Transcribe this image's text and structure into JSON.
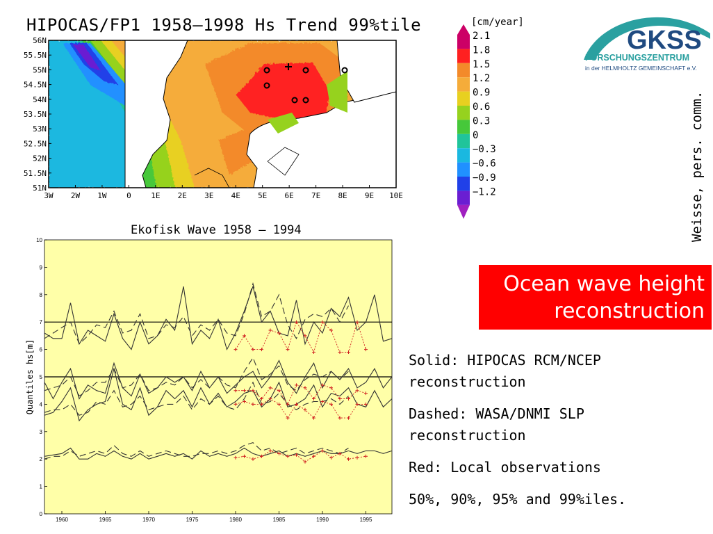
{
  "map": {
    "title": "HIPOCAS/FP1 1958–1998 Hs Trend 99%tile",
    "lat_labels": [
      "56N",
      "55.5N",
      "55N",
      "54.5N",
      "54N",
      "53.5N",
      "53N",
      "52.5N",
      "52N",
      "51.5N",
      "51N"
    ],
    "lon_labels": [
      "3W",
      "2W",
      "1W",
      "0",
      "1E",
      "2E",
      "3E",
      "4E",
      "5E",
      "6E",
      "7E",
      "8E",
      "9E",
      "10E"
    ]
  },
  "legend": {
    "unit": "[cm/year]",
    "entries": [
      {
        "label": "2.1",
        "color": "#cc0066"
      },
      {
        "label": "1.8",
        "color": "#ff2020"
      },
      {
        "label": "1.5",
        "color": "#f38a2a"
      },
      {
        "label": "1.2",
        "color": "#f5ac3a"
      },
      {
        "label": "0.9",
        "color": "#e8d020"
      },
      {
        "label": "0.6",
        "color": "#96d21e"
      },
      {
        "label": "0.3",
        "color": "#46c83a"
      },
      {
        "label": "0",
        "color": "#20c49a"
      },
      {
        "label": "−0.3",
        "color": "#1ab8e0"
      },
      {
        "label": "−0.6",
        "color": "#2090ff"
      },
      {
        "label": "−0.9",
        "color": "#2040e8"
      },
      {
        "label": "−1.2",
        "color": "#6a1ed2"
      }
    ],
    "bottom_color": "#a020c0"
  },
  "logo": {
    "letters": "GKSS",
    "line1": "FORSCHUNGSZENTRUM",
    "line2": "in der HELMHOLTZ GEMEINSCHAFT e.V.",
    "navy": "#1f4a80",
    "teal": "#2aa0a0"
  },
  "credit": "Weisse, pers. comm.",
  "heading": {
    "line1": "Ocean wave height",
    "line2": "reconstruction"
  },
  "notes": [
    {
      "a": "Solid: HIPOCAS RCM/NCEP",
      "b": "reconstruction"
    },
    {
      "a": "Dashed: WASA/DNMI SLP",
      "b": "reconstruction"
    },
    {
      "a": "Red: Local observations",
      "b": ""
    },
    {
      "a": "50%, 90%, 95% and 99%iles.",
      "b": ""
    }
  ],
  "chart_data": {
    "type": "line",
    "title": "Ekofisk Wave 1958 – 1994",
    "xlabel": "",
    "ylabel": "Quantiles hs[m]",
    "xlim": [
      1958,
      1998
    ],
    "ylim": [
      0,
      10
    ],
    "x_ticks": [
      1960,
      1965,
      1970,
      1975,
      1980,
      1985,
      1990,
      1995
    ],
    "y_ticks": [
      0,
      1,
      2,
      3,
      4,
      5,
      6,
      7,
      8,
      9,
      10
    ],
    "reference_lines": [
      5,
      7
    ],
    "background": "#ffffa8",
    "grid": false,
    "series": [
      {
        "style": "solid",
        "color": "#333333",
        "x_start": 1958,
        "values": [
          2.1,
          2.15,
          2.2,
          2.4,
          2.0,
          2.0,
          2.2,
          2.1,
          2.3,
          2.1,
          2.0,
          2.2,
          2.0,
          2.1,
          2.2,
          2.1,
          2.2,
          2.0,
          2.3,
          2.1,
          2.2,
          2.1,
          2.2,
          2.4,
          2.2,
          2.1,
          2.2,
          2.3,
          2.1,
          2.2,
          2.1,
          2.2,
          2.3,
          2.2,
          2.2,
          2.3,
          2.2,
          2.3,
          2.3,
          2.2,
          2.3
        ]
      },
      {
        "style": "dashed",
        "color": "#333333",
        "x_start": 1958,
        "values": [
          2.0,
          2.1,
          2.1,
          2.3,
          2.1,
          2.2,
          2.3,
          2.2,
          2.5,
          2.2,
          2.1,
          2.3,
          2.1,
          2.2,
          2.3,
          2.2,
          2.1,
          2.1,
          2.2,
          2.2,
          2.3,
          2.2,
          2.3,
          2.5,
          2.6,
          2.3,
          2.4,
          2.2,
          2.3,
          2.4,
          2.2,
          2.3,
          2.4,
          2.3,
          2.2,
          2.4
        ]
      },
      {
        "style": "solid",
        "color": "#333333",
        "x_start": 1958,
        "values": [
          3.6,
          3.7,
          4.1,
          4.6,
          3.4,
          3.8,
          4.0,
          4.1,
          5.3,
          4.0,
          3.8,
          4.6,
          3.6,
          3.9,
          4.5,
          4.2,
          4.5,
          3.9,
          4.6,
          4.0,
          4.4,
          3.9,
          4.1,
          4.4,
          4.5,
          3.9,
          4.2,
          4.8,
          3.9,
          4.0,
          4.2,
          4.7,
          3.9,
          4.4,
          4.3,
          4.6,
          4.0,
          3.9,
          4.5,
          3.9,
          4.2
        ]
      },
      {
        "style": "dashed",
        "color": "#333333",
        "x_start": 1958,
        "values": [
          3.7,
          3.8,
          3.8,
          4.0,
          3.6,
          3.7,
          4.1,
          4.0,
          4.5,
          3.9,
          4.0,
          4.3,
          3.8,
          3.9,
          4.0,
          4.0,
          4.3,
          3.8,
          4.2,
          4.0,
          4.3,
          3.9,
          3.8,
          4.2,
          4.8,
          4.0,
          4.1,
          4.4,
          4.0,
          3.8,
          4.0,
          4.1,
          4.1,
          4.2,
          4.0,
          4.3
        ]
      },
      {
        "style": "solid",
        "color": "#333333",
        "x_start": 1958,
        "values": [
          4.8,
          4.2,
          4.8,
          5.3,
          4.2,
          4.7,
          4.5,
          4.4,
          5.5,
          4.6,
          4.3,
          5.1,
          4.4,
          4.6,
          5.0,
          4.8,
          5.0,
          4.5,
          5.2,
          4.6,
          5.0,
          4.4,
          4.7,
          5.0,
          5.2,
          4.6,
          5.0,
          5.6,
          4.8,
          4.4,
          5.0,
          5.5,
          4.6,
          5.2,
          4.9,
          5.3,
          4.6,
          4.8,
          5.3,
          4.6,
          5.0
        ]
      },
      {
        "style": "dashed",
        "color": "#333333",
        "x_start": 1958,
        "values": [
          4.5,
          4.6,
          4.7,
          5.0,
          4.3,
          4.5,
          4.8,
          4.8,
          5.3,
          4.6,
          4.7,
          5.1,
          4.5,
          4.6,
          4.8,
          4.7,
          5.0,
          4.6,
          4.9,
          4.6,
          5.0,
          4.7,
          4.6,
          5.2,
          5.7,
          4.9,
          5.1,
          5.4,
          4.7,
          4.5,
          4.9,
          5.1,
          5.0,
          5.2,
          4.9,
          5.2
        ]
      },
      {
        "style": "solid",
        "color": "#333333",
        "x_start": 1958,
        "values": [
          6.6,
          6.4,
          6.4,
          7.7,
          6.2,
          6.7,
          6.5,
          6.3,
          7.3,
          6.4,
          6.0,
          7.0,
          6.2,
          6.5,
          7.1,
          6.7,
          8.3,
          6.2,
          6.7,
          6.4,
          7.1,
          6.0,
          6.6,
          7.4,
          8.3,
          7.0,
          7.4,
          6.6,
          6.5,
          7.8,
          6.2,
          7.0,
          6.6,
          7.5,
          7.2,
          7.9,
          6.7,
          7.0,
          8.0,
          6.3,
          6.4
        ]
      },
      {
        "style": "dashed",
        "color": "#333333",
        "x_start": 1958,
        "values": [
          6.4,
          6.6,
          6.8,
          7.0,
          6.2,
          6.5,
          6.9,
          6.8,
          7.4,
          6.6,
          6.7,
          7.3,
          6.4,
          6.5,
          6.9,
          6.8,
          7.2,
          6.5,
          6.9,
          6.7,
          7.1,
          6.6,
          6.5,
          7.3,
          8.4,
          7.2,
          7.4,
          8.0,
          6.9,
          6.4,
          7.1,
          7.3,
          7.2,
          7.5,
          7.0,
          7.6
        ]
      },
      {
        "style": "dotted-cross",
        "color": "#d02020",
        "x_start": 1980,
        "values": [
          2.05,
          2.1,
          2.0,
          2.1,
          2.3,
          2.2,
          2.1,
          2.15,
          1.9,
          2.1,
          2.3,
          2.05,
          2.2,
          2.0,
          2.05,
          2.1
        ]
      },
      {
        "style": "dotted-cross",
        "color": "#d02020",
        "x_start": 1980,
        "values": [
          4.0,
          4.1,
          4.0,
          4.0,
          4.2,
          4.0,
          3.5,
          4.0,
          3.8,
          3.5,
          4.1,
          4.0,
          3.5,
          3.5,
          4.0,
          4.0
        ]
      },
      {
        "style": "dotted-cross",
        "color": "#d02020",
        "x_start": 1980,
        "values": [
          4.5,
          4.5,
          4.5,
          4.2,
          4.6,
          4.5,
          4.0,
          4.7,
          4.6,
          4.2,
          4.7,
          4.6,
          4.2,
          4.2,
          4.5,
          4.4
        ]
      },
      {
        "style": "dotted-cross",
        "color": "#d02020",
        "x_start": 1980,
        "values": [
          6.0,
          6.5,
          6.0,
          6.0,
          6.7,
          6.6,
          6.0,
          7.0,
          6.5,
          5.9,
          7.0,
          6.7,
          5.9,
          5.9,
          7.0,
          6.0
        ]
      }
    ]
  }
}
